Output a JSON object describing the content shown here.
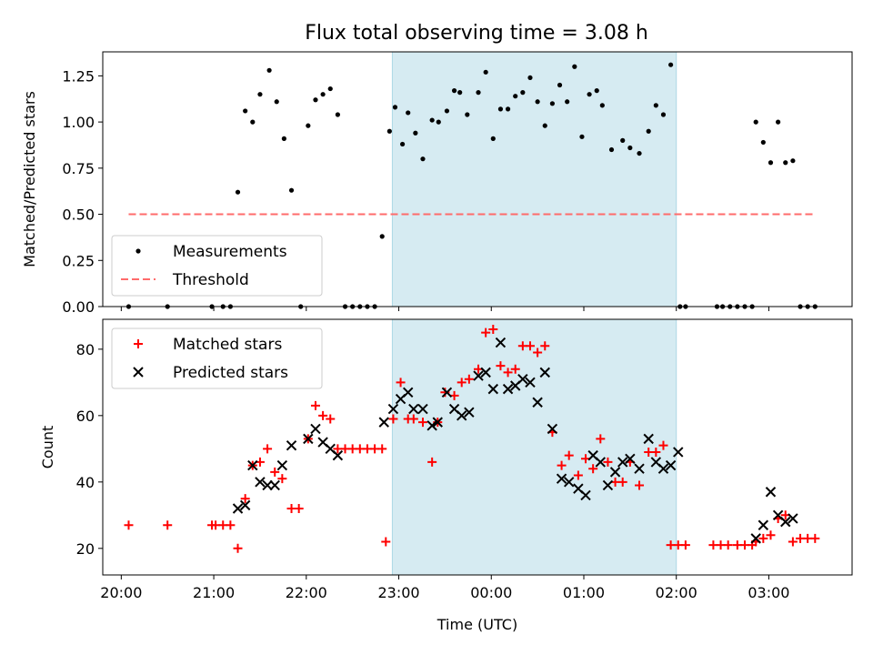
{
  "figure": {
    "title": "Flux total observing time = 3.08 h"
  },
  "colors": {
    "measurement": "#000000",
    "threshold": "#ff6b6b",
    "matched": "#ff0000",
    "predicted": "#000000",
    "span": "#add8e6"
  },
  "chart_data": [
    {
      "type": "scatter",
      "ylabel": "Matched/Predicted stars",
      "xlabel": "",
      "ylim": [
        0,
        1.38
      ],
      "xlim": [
        -0.2,
        7.9
      ],
      "yticks": [
        0,
        0.25,
        0.5,
        0.75,
        1.0,
        1.25
      ],
      "ytick_labels": [
        "0.00",
        "0.25",
        "0.50",
        "0.75",
        "1.00",
        "1.25"
      ],
      "highlight_span": [
        2.93,
        6.0
      ],
      "legend": {
        "placement": "lower-left",
        "entries": [
          {
            "label": "Measurements",
            "marker": "dot"
          },
          {
            "label": "Threshold",
            "marker": "dashed-line"
          }
        ]
      },
      "series": [
        {
          "name": "Measurements",
          "marker": "dot",
          "x": [
            0.08,
            0.5,
            0.98,
            1.1,
            1.18,
            1.26,
            1.34,
            1.42,
            1.5,
            1.6,
            1.68,
            1.76,
            1.84,
            1.94,
            2.02,
            2.1,
            2.18,
            2.26,
            2.34,
            2.42,
            2.5,
            2.58,
            2.66,
            2.74,
            2.82,
            2.9,
            2.96,
            3.04,
            3.1,
            3.18,
            3.26,
            3.36,
            3.43,
            3.52,
            3.6,
            3.66,
            3.74,
            3.86,
            3.94,
            4.02,
            4.1,
            4.18,
            4.26,
            4.34,
            4.42,
            4.5,
            4.58,
            4.66,
            4.74,
            4.82,
            4.9,
            4.98,
            5.06,
            5.14,
            5.2,
            5.3,
            5.42,
            5.5,
            5.6,
            5.7,
            5.78,
            5.86,
            5.94,
            6.04,
            6.1,
            6.44,
            6.5,
            6.58,
            6.66,
            6.74,
            6.82,
            6.86,
            6.94,
            7.02,
            7.1,
            7.18,
            7.26,
            7.34,
            7.42,
            7.5
          ],
          "y": [
            0.0,
            0.0,
            0.0,
            0.0,
            0.0,
            0.62,
            1.06,
            1.0,
            1.15,
            1.28,
            1.11,
            0.91,
            0.63,
            0.0,
            0.98,
            1.12,
            1.15,
            1.18,
            1.04,
            0.0,
            0.0,
            0.0,
            0.0,
            0.0,
            0.38,
            0.95,
            1.08,
            0.88,
            1.05,
            0.94,
            0.8,
            1.01,
            1.0,
            1.06,
            1.17,
            1.16,
            1.04,
            1.16,
            1.27,
            0.91,
            1.07,
            1.07,
            1.14,
            1.16,
            1.24,
            1.11,
            0.98,
            1.1,
            1.2,
            1.11,
            1.3,
            0.92,
            1.15,
            1.17,
            1.09,
            0.85,
            0.9,
            0.86,
            0.83,
            0.95,
            1.09,
            1.04,
            1.31,
            0.0,
            0.0,
            0.0,
            0.0,
            0.0,
            0.0,
            0.0,
            0.0,
            1.0,
            0.89,
            0.78,
            1.0,
            0.78,
            0.79,
            0.0,
            0.0,
            0.0
          ]
        },
        {
          "name": "Threshold",
          "marker": "dashed-line",
          "x": [
            0.08,
            7.5
          ],
          "y": [
            0.5,
            0.5
          ]
        }
      ]
    },
    {
      "type": "scatter",
      "ylabel": "Count",
      "xlabel": "Time (UTC)",
      "ylim": [
        12,
        89
      ],
      "xlim": [
        -0.2,
        7.9
      ],
      "yticks": [
        20,
        40,
        60,
        80
      ],
      "ytick_labels": [
        "20",
        "40",
        "60",
        "80"
      ],
      "xticks": [
        0,
        1,
        2,
        3,
        4,
        5,
        6,
        7
      ],
      "xtick_labels": [
        "20:00",
        "21:00",
        "22:00",
        "23:00",
        "00:00",
        "01:00",
        "02:00",
        "03:00"
      ],
      "highlight_span": [
        2.93,
        6.0
      ],
      "legend": {
        "placement": "top-left",
        "entries": [
          {
            "label": "Matched stars",
            "marker": "plus"
          },
          {
            "label": "Predicted stars",
            "marker": "x"
          }
        ]
      },
      "series": [
        {
          "name": "Matched stars",
          "marker": "plus",
          "x": [
            0.08,
            0.5,
            0.98,
            1.02,
            1.1,
            1.18,
            1.26,
            1.34,
            1.42,
            1.5,
            1.58,
            1.66,
            1.74,
            1.84,
            1.92,
            2.02,
            2.1,
            2.18,
            2.26,
            2.34,
            2.42,
            2.5,
            2.58,
            2.66,
            2.74,
            2.82,
            2.86,
            2.94,
            3.02,
            3.1,
            3.16,
            3.26,
            3.36,
            3.42,
            3.5,
            3.6,
            3.68,
            3.76,
            3.86,
            3.94,
            4.02,
            4.1,
            4.18,
            4.26,
            4.34,
            4.42,
            4.5,
            4.58,
            4.66,
            4.76,
            4.84,
            4.94,
            5.02,
            5.1,
            5.18,
            5.26,
            5.34,
            5.42,
            5.5,
            5.6,
            5.7,
            5.78,
            5.86,
            5.94,
            6.02,
            6.1,
            6.4,
            6.48,
            6.56,
            6.66,
            6.74,
            6.82,
            6.86,
            6.94,
            7.02,
            7.1,
            7.18,
            7.26,
            7.34,
            7.42,
            7.5
          ],
          "y": [
            27,
            27,
            27,
            27,
            27,
            27,
            20,
            35,
            45,
            46,
            50,
            43,
            41,
            32,
            32,
            53,
            63,
            60,
            59,
            50,
            50,
            50,
            50,
            50,
            50,
            50,
            22,
            59,
            70,
            59,
            59,
            58,
            46,
            58,
            67,
            66,
            70,
            71,
            74,
            85,
            86,
            75,
            73,
            74,
            81,
            81,
            79,
            81,
            55,
            45,
            48,
            42,
            47,
            44,
            53,
            46,
            40,
            40,
            46,
            39,
            49,
            49,
            51,
            21,
            21,
            21,
            21,
            21,
            21,
            21,
            21,
            21,
            22,
            23,
            24,
            29,
            30,
            22,
            23,
            23,
            23
          ]
        },
        {
          "name": "Predicted stars",
          "marker": "x",
          "x": [
            1.26,
            1.34,
            1.42,
            1.5,
            1.58,
            1.66,
            1.74,
            1.84,
            2.02,
            2.1,
            2.18,
            2.26,
            2.34,
            2.84,
            2.94,
            3.02,
            3.1,
            3.16,
            3.26,
            3.36,
            3.42,
            3.52,
            3.6,
            3.68,
            3.76,
            3.86,
            3.94,
            4.02,
            4.1,
            4.18,
            4.26,
            4.34,
            4.42,
            4.5,
            4.58,
            4.66,
            4.76,
            4.84,
            4.94,
            5.02,
            5.1,
            5.18,
            5.26,
            5.34,
            5.42,
            5.5,
            5.6,
            5.7,
            5.78,
            5.86,
            5.94,
            6.02,
            6.86,
            6.94,
            7.02,
            7.1,
            7.18,
            7.26
          ],
          "y": [
            32,
            33,
            45,
            40,
            39,
            39,
            45,
            51,
            53,
            56,
            52,
            50,
            48,
            58,
            62,
            65,
            67,
            62,
            62,
            57,
            58,
            67,
            62,
            60,
            61,
            72,
            73,
            68,
            82,
            68,
            69,
            71,
            70,
            64,
            73,
            56,
            41,
            40,
            38,
            36,
            48,
            46,
            39,
            43,
            46,
            47,
            44,
            53,
            46,
            44,
            45,
            49,
            23,
            27,
            37,
            30,
            28,
            29
          ]
        }
      ]
    }
  ]
}
